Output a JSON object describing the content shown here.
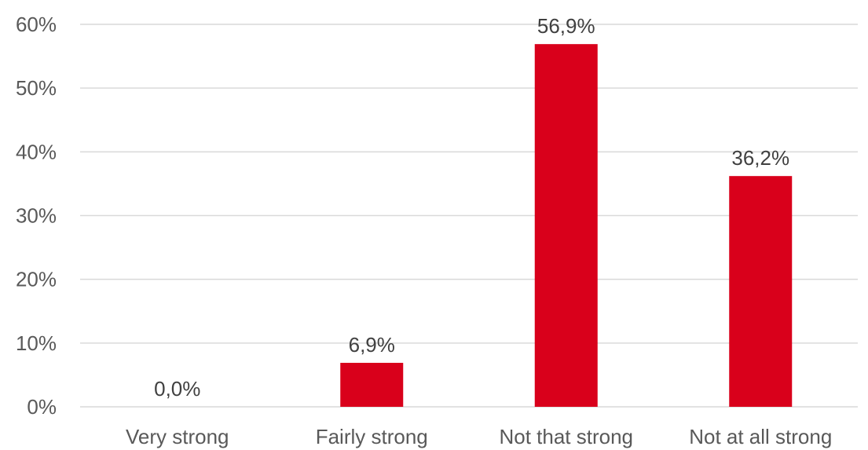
{
  "chart_data": {
    "type": "bar",
    "categories": [
      "Very strong",
      "Fairly strong",
      "Not that strong",
      "Not at all strong"
    ],
    "values": [
      0.0,
      6.9,
      56.9,
      36.2
    ],
    "data_labels": [
      "0,0%",
      "6,9%",
      "56,9%",
      "36,2%"
    ],
    "y_ticks": [
      0,
      10,
      20,
      30,
      40,
      50,
      60
    ],
    "y_tick_labels": [
      "0%",
      "10%",
      "20%",
      "30%",
      "40%",
      "50%",
      "60%"
    ],
    "ylim": [
      0,
      60
    ],
    "grid": true,
    "legend": "none",
    "title": "",
    "xlabel": "",
    "ylabel": "",
    "bar_color": "#d9001b",
    "gridline_color": "#d9d9d9",
    "text_color": "#595959"
  }
}
